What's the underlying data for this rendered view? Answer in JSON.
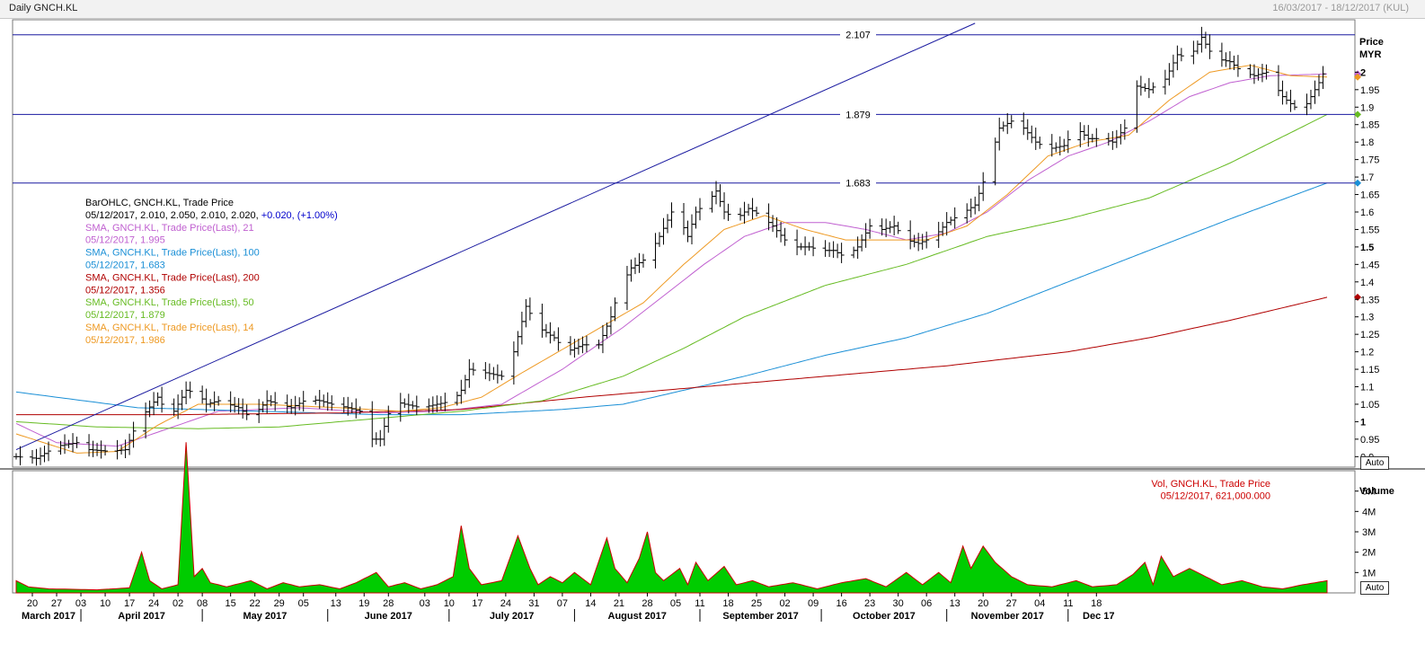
{
  "header": {
    "title": "Daily GNCH.KL",
    "range": "16/03/2017 - 18/12/2017 (KUL)"
  },
  "price_axis": {
    "title": "Price",
    "currency": "MYR",
    "auto_label": "Auto"
  },
  "volume_axis": {
    "title": "Volume",
    "auto_label": "Auto"
  },
  "legend": [
    {
      "text": "BarOHLC, GNCH.KL, Trade Price",
      "color": "#000000"
    },
    {
      "text": "05/12/2017, 2.010, 2.050, 2.010, 2.020,",
      "color": "#000000",
      "extra": "+0.020, (+1.00%)",
      "extra_color": "#0000cc"
    },
    {
      "text": "SMA, GNCH.KL, Trade Price(Last),  21",
      "color": "#c060d0"
    },
    {
      "text": "05/12/2017, 1.995",
      "color": "#c060d0"
    },
    {
      "text": "SMA, GNCH.KL, Trade Price(Last),  100",
      "color": "#1a8fd6"
    },
    {
      "text": "05/12/2017, 1.683",
      "color": "#1a8fd6"
    },
    {
      "text": "SMA, GNCH.KL, Trade Price(Last),  200",
      "color": "#b00000"
    },
    {
      "text": "05/12/2017, 1.356",
      "color": "#b00000"
    },
    {
      "text": "SMA, GNCH.KL, Trade Price(Last),  50",
      "color": "#66bb22"
    },
    {
      "text": "05/12/2017, 1.879",
      "color": "#66bb22"
    },
    {
      "text": "SMA, GNCH.KL, Trade Price(Last),  14",
      "color": "#ee9922"
    },
    {
      "text": "05/12/2017, 1.986",
      "color": "#ee9922"
    }
  ],
  "vol_legend": [
    {
      "text": "Vol, GNCH.KL, Trade Price",
      "color": "#cc0000"
    },
    {
      "text": "05/12/2017, 621,000.000",
      "color": "#cc0000"
    }
  ],
  "chart_data": {
    "type": "ohlc",
    "price_ylim": [
      0.87,
      2.15
    ],
    "price_ticks": [
      "2",
      "1.95",
      "1.9",
      "1.85",
      "1.8",
      "1.75",
      "1.7",
      "1.65",
      "1.6",
      "1.55",
      "1.5",
      "1.45",
      "1.4",
      "1.35",
      "1.3",
      "1.25",
      "1.2",
      "1.15",
      "1.1",
      "1.05",
      "1",
      "0.95",
      "0.9"
    ],
    "volume_ylim": [
      0,
      6000000
    ],
    "volume_ticks": [
      "5M",
      "4M",
      "3M",
      "2M",
      "1M"
    ],
    "date_ticks": [
      "20",
      "27",
      "03",
      "10",
      "17",
      "24",
      "02",
      "08",
      "15",
      "22",
      "29",
      "05",
      "13",
      "19",
      "28",
      "03",
      "10",
      "17",
      "24",
      "31",
      "07",
      "14",
      "21",
      "28",
      "05",
      "11",
      "18",
      "25",
      "02",
      "09",
      "16",
      "23",
      "30",
      "06",
      "13",
      "20",
      "27",
      "04",
      "11",
      "18"
    ],
    "months": [
      "March 2017",
      "April 2017",
      "May 2017",
      "June 2017",
      "July 2017",
      "August 2017",
      "September 2017",
      "October 2017",
      "November 2017",
      "Dec 17"
    ],
    "horizontal_lines": [
      {
        "label": "2.107",
        "value": 2.107
      },
      {
        "label": "1.879",
        "value": 1.879
      },
      {
        "label": "1.683",
        "value": 1.683
      }
    ],
    "trendline": [
      {
        "date": "2017-03-16",
        "value": 0.92
      },
      {
        "date": "2017-11-08",
        "value": 2.14
      }
    ],
    "close_series": {
      "start_date": "2017-03-16",
      "anchors": [
        [
          0,
          0.9
        ],
        [
          5,
          0.895
        ],
        [
          10,
          0.93
        ],
        [
          15,
          0.94
        ],
        [
          18,
          0.92
        ],
        [
          23,
          0.915
        ],
        [
          27,
          0.92
        ],
        [
          30,
          1.0
        ],
        [
          35,
          1.07
        ],
        [
          38,
          1.01
        ],
        [
          42,
          1.09
        ],
        [
          45,
          1.08
        ],
        [
          47,
          1.05
        ],
        [
          50,
          1.06
        ],
        [
          55,
          1.04
        ],
        [
          58,
          1.01
        ],
        [
          62,
          1.06
        ],
        [
          65,
          1.05
        ],
        [
          68,
          1.04
        ],
        [
          72,
          1.065
        ],
        [
          75,
          1.06
        ],
        [
          78,
          1.05
        ],
        [
          82,
          1.04
        ],
        [
          85,
          1.03
        ],
        [
          88,
          0.95
        ],
        [
          90,
          0.95
        ],
        [
          93,
          1.06
        ],
        [
          96,
          1.05
        ],
        [
          100,
          1.04
        ],
        [
          104,
          1.05
        ],
        [
          108,
          1.06
        ],
        [
          110,
          1.09
        ],
        [
          112,
          1.15
        ],
        [
          116,
          1.14
        ],
        [
          120,
          1.13
        ],
        [
          123,
          1.2
        ],
        [
          126,
          1.33
        ],
        [
          129,
          1.27
        ],
        [
          133,
          1.24
        ],
        [
          136,
          1.2
        ],
        [
          140,
          1.22
        ],
        [
          144,
          1.22
        ],
        [
          147,
          1.3
        ],
        [
          149,
          1.38
        ],
        [
          152,
          1.44
        ],
        [
          156,
          1.47
        ],
        [
          159,
          1.53
        ],
        [
          162,
          1.6
        ],
        [
          164,
          1.58
        ],
        [
          166,
          1.53
        ],
        [
          168,
          1.6
        ],
        [
          171,
          1.63
        ],
        [
          173,
          1.66
        ],
        [
          175,
          1.6
        ],
        [
          178,
          1.58
        ],
        [
          181,
          1.61
        ],
        [
          184,
          1.59
        ],
        [
          187,
          1.56
        ],
        [
          190,
          1.52
        ],
        [
          193,
          1.5
        ],
        [
          196,
          1.5
        ],
        [
          199,
          1.49
        ],
        [
          202,
          1.49
        ],
        [
          205,
          1.47
        ],
        [
          208,
          1.5
        ],
        [
          211,
          1.56
        ],
        [
          214,
          1.55
        ],
        [
          217,
          1.56
        ],
        [
          220,
          1.52
        ],
        [
          223,
          1.51
        ],
        [
          227,
          1.53
        ],
        [
          230,
          1.57
        ],
        [
          233,
          1.59
        ],
        [
          237,
          1.62
        ],
        [
          240,
          1.72
        ],
        [
          243,
          1.84
        ],
        [
          246,
          1.86
        ],
        [
          249,
          1.84
        ],
        [
          252,
          1.8
        ],
        [
          255,
          1.78
        ],
        [
          259,
          1.79
        ],
        [
          262,
          1.84
        ],
        [
          265,
          1.81
        ],
        [
          268,
          1.81
        ],
        [
          271,
          1.8
        ],
        [
          274,
          1.84
        ],
        [
          277,
          1.96
        ],
        [
          280,
          1.95
        ],
        [
          284,
          1.98
        ],
        [
          287,
          2.05
        ],
        [
          290,
          2.04
        ],
        [
          293,
          2.1
        ],
        [
          296,
          2.04
        ],
        [
          300,
          2.03
        ],
        [
          303,
          2.0
        ],
        [
          306,
          1.99
        ],
        [
          309,
          2.0
        ],
        [
          313,
          1.93
        ],
        [
          316,
          1.9
        ],
        [
          319,
          1.91
        ],
        [
          322,
          1.97
        ],
        [
          324,
          2.02
        ]
      ]
    },
    "sma_series": [
      {
        "name": "SMA, GNCH.KL, Trade Price(Last),  21",
        "color": "#c060d0",
        "points": [
          [
            0,
            0.995
          ],
          [
            10,
            0.94
          ],
          [
            25,
            0.93
          ],
          [
            35,
            0.97
          ],
          [
            50,
            1.03
          ],
          [
            70,
            1.04
          ],
          [
            90,
            1.025
          ],
          [
            105,
            1.03
          ],
          [
            120,
            1.05
          ],
          [
            135,
            1.15
          ],
          [
            150,
            1.27
          ],
          [
            160,
            1.36
          ],
          [
            170,
            1.45
          ],
          [
            180,
            1.53
          ],
          [
            190,
            1.57
          ],
          [
            200,
            1.57
          ],
          [
            210,
            1.55
          ],
          [
            220,
            1.52
          ],
          [
            230,
            1.54
          ],
          [
            240,
            1.6
          ],
          [
            250,
            1.69
          ],
          [
            260,
            1.76
          ],
          [
            270,
            1.8
          ],
          [
            280,
            1.86
          ],
          [
            290,
            1.93
          ],
          [
            300,
            1.97
          ],
          [
            310,
            1.99
          ],
          [
            324,
            1.995
          ]
        ]
      },
      {
        "name": "SMA, GNCH.KL, Trade Price(Last),  100",
        "color": "#1a8fd6",
        "points": [
          [
            0,
            1.085
          ],
          [
            30,
            1.04
          ],
          [
            60,
            1.03
          ],
          [
            90,
            1.02
          ],
          [
            110,
            1.02
          ],
          [
            135,
            1.035
          ],
          [
            150,
            1.05
          ],
          [
            165,
            1.09
          ],
          [
            180,
            1.13
          ],
          [
            200,
            1.19
          ],
          [
            220,
            1.24
          ],
          [
            240,
            1.31
          ],
          [
            260,
            1.4
          ],
          [
            280,
            1.49
          ],
          [
            300,
            1.58
          ],
          [
            324,
            1.683
          ]
        ]
      },
      {
        "name": "SMA, GNCH.KL, Trade Price(Last),  200",
        "color": "#b00000",
        "points": [
          [
            0,
            1.02
          ],
          [
            40,
            1.02
          ],
          [
            80,
            1.025
          ],
          [
            110,
            1.035
          ],
          [
            140,
            1.07
          ],
          [
            170,
            1.1
          ],
          [
            200,
            1.13
          ],
          [
            230,
            1.16
          ],
          [
            260,
            1.2
          ],
          [
            280,
            1.24
          ],
          [
            300,
            1.29
          ],
          [
            324,
            1.356
          ]
        ]
      },
      {
        "name": "SMA, GNCH.KL, Trade Price(Last),  50",
        "color": "#66bb22",
        "points": [
          [
            0,
            1.0
          ],
          [
            20,
            0.985
          ],
          [
            45,
            0.98
          ],
          [
            65,
            0.985
          ],
          [
            90,
            1.01
          ],
          [
            110,
            1.03
          ],
          [
            130,
            1.06
          ],
          [
            150,
            1.13
          ],
          [
            165,
            1.21
          ],
          [
            180,
            1.3
          ],
          [
            200,
            1.39
          ],
          [
            220,
            1.45
          ],
          [
            240,
            1.53
          ],
          [
            260,
            1.58
          ],
          [
            280,
            1.64
          ],
          [
            300,
            1.74
          ],
          [
            324,
            1.879
          ]
        ]
      },
      {
        "name": "SMA, GNCH.KL, Trade Price(Last),  14",
        "color": "#ee9922",
        "points": [
          [
            0,
            0.965
          ],
          [
            15,
            0.91
          ],
          [
            25,
            0.915
          ],
          [
            35,
            0.99
          ],
          [
            45,
            1.05
          ],
          [
            60,
            1.05
          ],
          [
            80,
            1.04
          ],
          [
            95,
            1.03
          ],
          [
            105,
            1.04
          ],
          [
            115,
            1.07
          ],
          [
            125,
            1.14
          ],
          [
            140,
            1.24
          ],
          [
            155,
            1.34
          ],
          [
            165,
            1.45
          ],
          [
            175,
            1.55
          ],
          [
            185,
            1.59
          ],
          [
            195,
            1.55
          ],
          [
            205,
            1.52
          ],
          [
            215,
            1.52
          ],
          [
            225,
            1.52
          ],
          [
            235,
            1.56
          ],
          [
            245,
            1.65
          ],
          [
            255,
            1.76
          ],
          [
            265,
            1.8
          ],
          [
            275,
            1.82
          ],
          [
            285,
            1.92
          ],
          [
            295,
            2.0
          ],
          [
            305,
            2.02
          ],
          [
            315,
            1.99
          ],
          [
            324,
            1.986
          ]
        ]
      }
    ],
    "volume_series": {
      "color": "#00cc00",
      "points": [
        [
          0,
          0.6
        ],
        [
          3,
          0.3
        ],
        [
          8,
          0.2
        ],
        [
          20,
          0.15
        ],
        [
          28,
          0.25
        ],
        [
          31,
          2.0
        ],
        [
          33,
          0.6
        ],
        [
          36,
          0.2
        ],
        [
          40,
          0.4
        ],
        [
          42,
          7.4
        ],
        [
          44,
          0.8
        ],
        [
          46,
          1.2
        ],
        [
          48,
          0.5
        ],
        [
          52,
          0.3
        ],
        [
          58,
          0.6
        ],
        [
          62,
          0.2
        ],
        [
          66,
          0.5
        ],
        [
          70,
          0.3
        ],
        [
          75,
          0.4
        ],
        [
          80,
          0.2
        ],
        [
          84,
          0.5
        ],
        [
          87,
          0.8
        ],
        [
          89,
          1.0
        ],
        [
          92,
          0.3
        ],
        [
          96,
          0.5
        ],
        [
          100,
          0.2
        ],
        [
          104,
          0.4
        ],
        [
          108,
          0.8
        ],
        [
          110,
          3.3
        ],
        [
          112,
          1.2
        ],
        [
          115,
          0.4
        ],
        [
          120,
          0.6
        ],
        [
          124,
          2.8
        ],
        [
          127,
          1.2
        ],
        [
          129,
          0.4
        ],
        [
          132,
          0.8
        ],
        [
          135,
          0.5
        ],
        [
          138,
          1.0
        ],
        [
          142,
          0.4
        ],
        [
          146,
          2.7
        ],
        [
          148,
          1.2
        ],
        [
          151,
          0.5
        ],
        [
          154,
          1.7
        ],
        [
          156,
          3.0
        ],
        [
          158,
          1.0
        ],
        [
          160,
          0.6
        ],
        [
          164,
          1.2
        ],
        [
          166,
          0.4
        ],
        [
          168,
          1.5
        ],
        [
          171,
          0.6
        ],
        [
          175,
          1.3
        ],
        [
          178,
          0.4
        ],
        [
          182,
          0.6
        ],
        [
          186,
          0.3
        ],
        [
          192,
          0.5
        ],
        [
          198,
          0.2
        ],
        [
          204,
          0.5
        ],
        [
          210,
          0.7
        ],
        [
          215,
          0.3
        ],
        [
          220,
          1.0
        ],
        [
          224,
          0.4
        ],
        [
          228,
          1.0
        ],
        [
          231,
          0.5
        ],
        [
          234,
          2.3
        ],
        [
          236,
          1.2
        ],
        [
          239,
          2.3
        ],
        [
          242,
          1.5
        ],
        [
          246,
          0.8
        ],
        [
          250,
          0.4
        ],
        [
          256,
          0.3
        ],
        [
          262,
          0.6
        ],
        [
          266,
          0.3
        ],
        [
          272,
          0.4
        ],
        [
          276,
          0.9
        ],
        [
          279,
          1.5
        ],
        [
          281,
          0.4
        ],
        [
          283,
          1.8
        ],
        [
          286,
          0.8
        ],
        [
          290,
          1.2
        ],
        [
          294,
          0.8
        ],
        [
          298,
          0.4
        ],
        [
          303,
          0.6
        ],
        [
          308,
          0.3
        ],
        [
          313,
          0.2
        ],
        [
          318,
          0.4
        ],
        [
          324,
          0.6
        ]
      ]
    }
  }
}
